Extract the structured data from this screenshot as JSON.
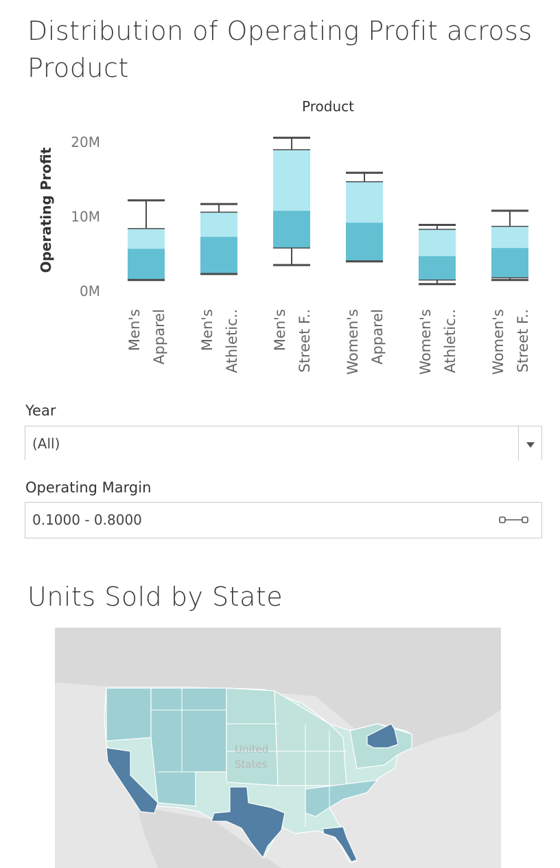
{
  "chart_title": "Distribution of Operating Profit across Product",
  "chart_data": {
    "type": "box",
    "title": "Distribution of Operating Profit across Product",
    "xlabel": "Product",
    "ylabel": "Operating Profit",
    "ylim": [
      0,
      22500000
    ],
    "y_ticks": [
      0,
      10000000,
      20000000
    ],
    "y_tick_labels": [
      "0M",
      "10M",
      "20M"
    ],
    "categories": [
      [
        "Men's",
        "Apparel"
      ],
      [
        "Men's",
        "Athletic.."
      ],
      [
        "Men's",
        "Street F.."
      ],
      [
        "Women's",
        "Apparel"
      ],
      [
        "Women's",
        "Athletic.."
      ],
      [
        "Women's",
        "Street F.."
      ]
    ],
    "series": [
      {
        "values": [
          {
            "min": 1500000,
            "q1": 1500000,
            "median": 5700000,
            "q3": 8400000,
            "max": 12200000
          },
          {
            "min": 2300000,
            "q1": 2300000,
            "median": 7300000,
            "q3": 10600000,
            "max": 11700000
          },
          {
            "min": 3500000,
            "q1": 5800000,
            "median": 10800000,
            "q3": 19000000,
            "max": 20600000
          },
          {
            "min": 4000000,
            "q1": 4000000,
            "median": 9200000,
            "q3": 14700000,
            "max": 15900000
          },
          {
            "min": 950000,
            "q1": 1500000,
            "median": 4700000,
            "q3": 8300000,
            "max": 8900000
          },
          {
            "min": 1500000,
            "q1": 1800000,
            "median": 5800000,
            "q3": 8700000,
            "max": 10800000
          }
        ]
      }
    ],
    "colors": {
      "upper_box": "#b0e8f2",
      "lower_box": "#63c0d3",
      "whisker": "#4a4a4a"
    },
    "grid": false
  },
  "filters": {
    "year": {
      "label": "Year",
      "value": "(All)"
    },
    "operating_margin": {
      "label": "Operating Margin",
      "value": "0.1000 - 0.8000"
    }
  },
  "map": {
    "title": "Units Sold by State",
    "country_label_line1": "United",
    "country_label_line2": "States",
    "colors": {
      "low": "#cde9e3",
      "mid": "#9ecfd3",
      "high": "#527fa3",
      "background": "#e6e6e6",
      "land": "#d6d6d6"
    },
    "highlighted_states": [
      "California",
      "Texas",
      "New York",
      "Florida"
    ]
  }
}
